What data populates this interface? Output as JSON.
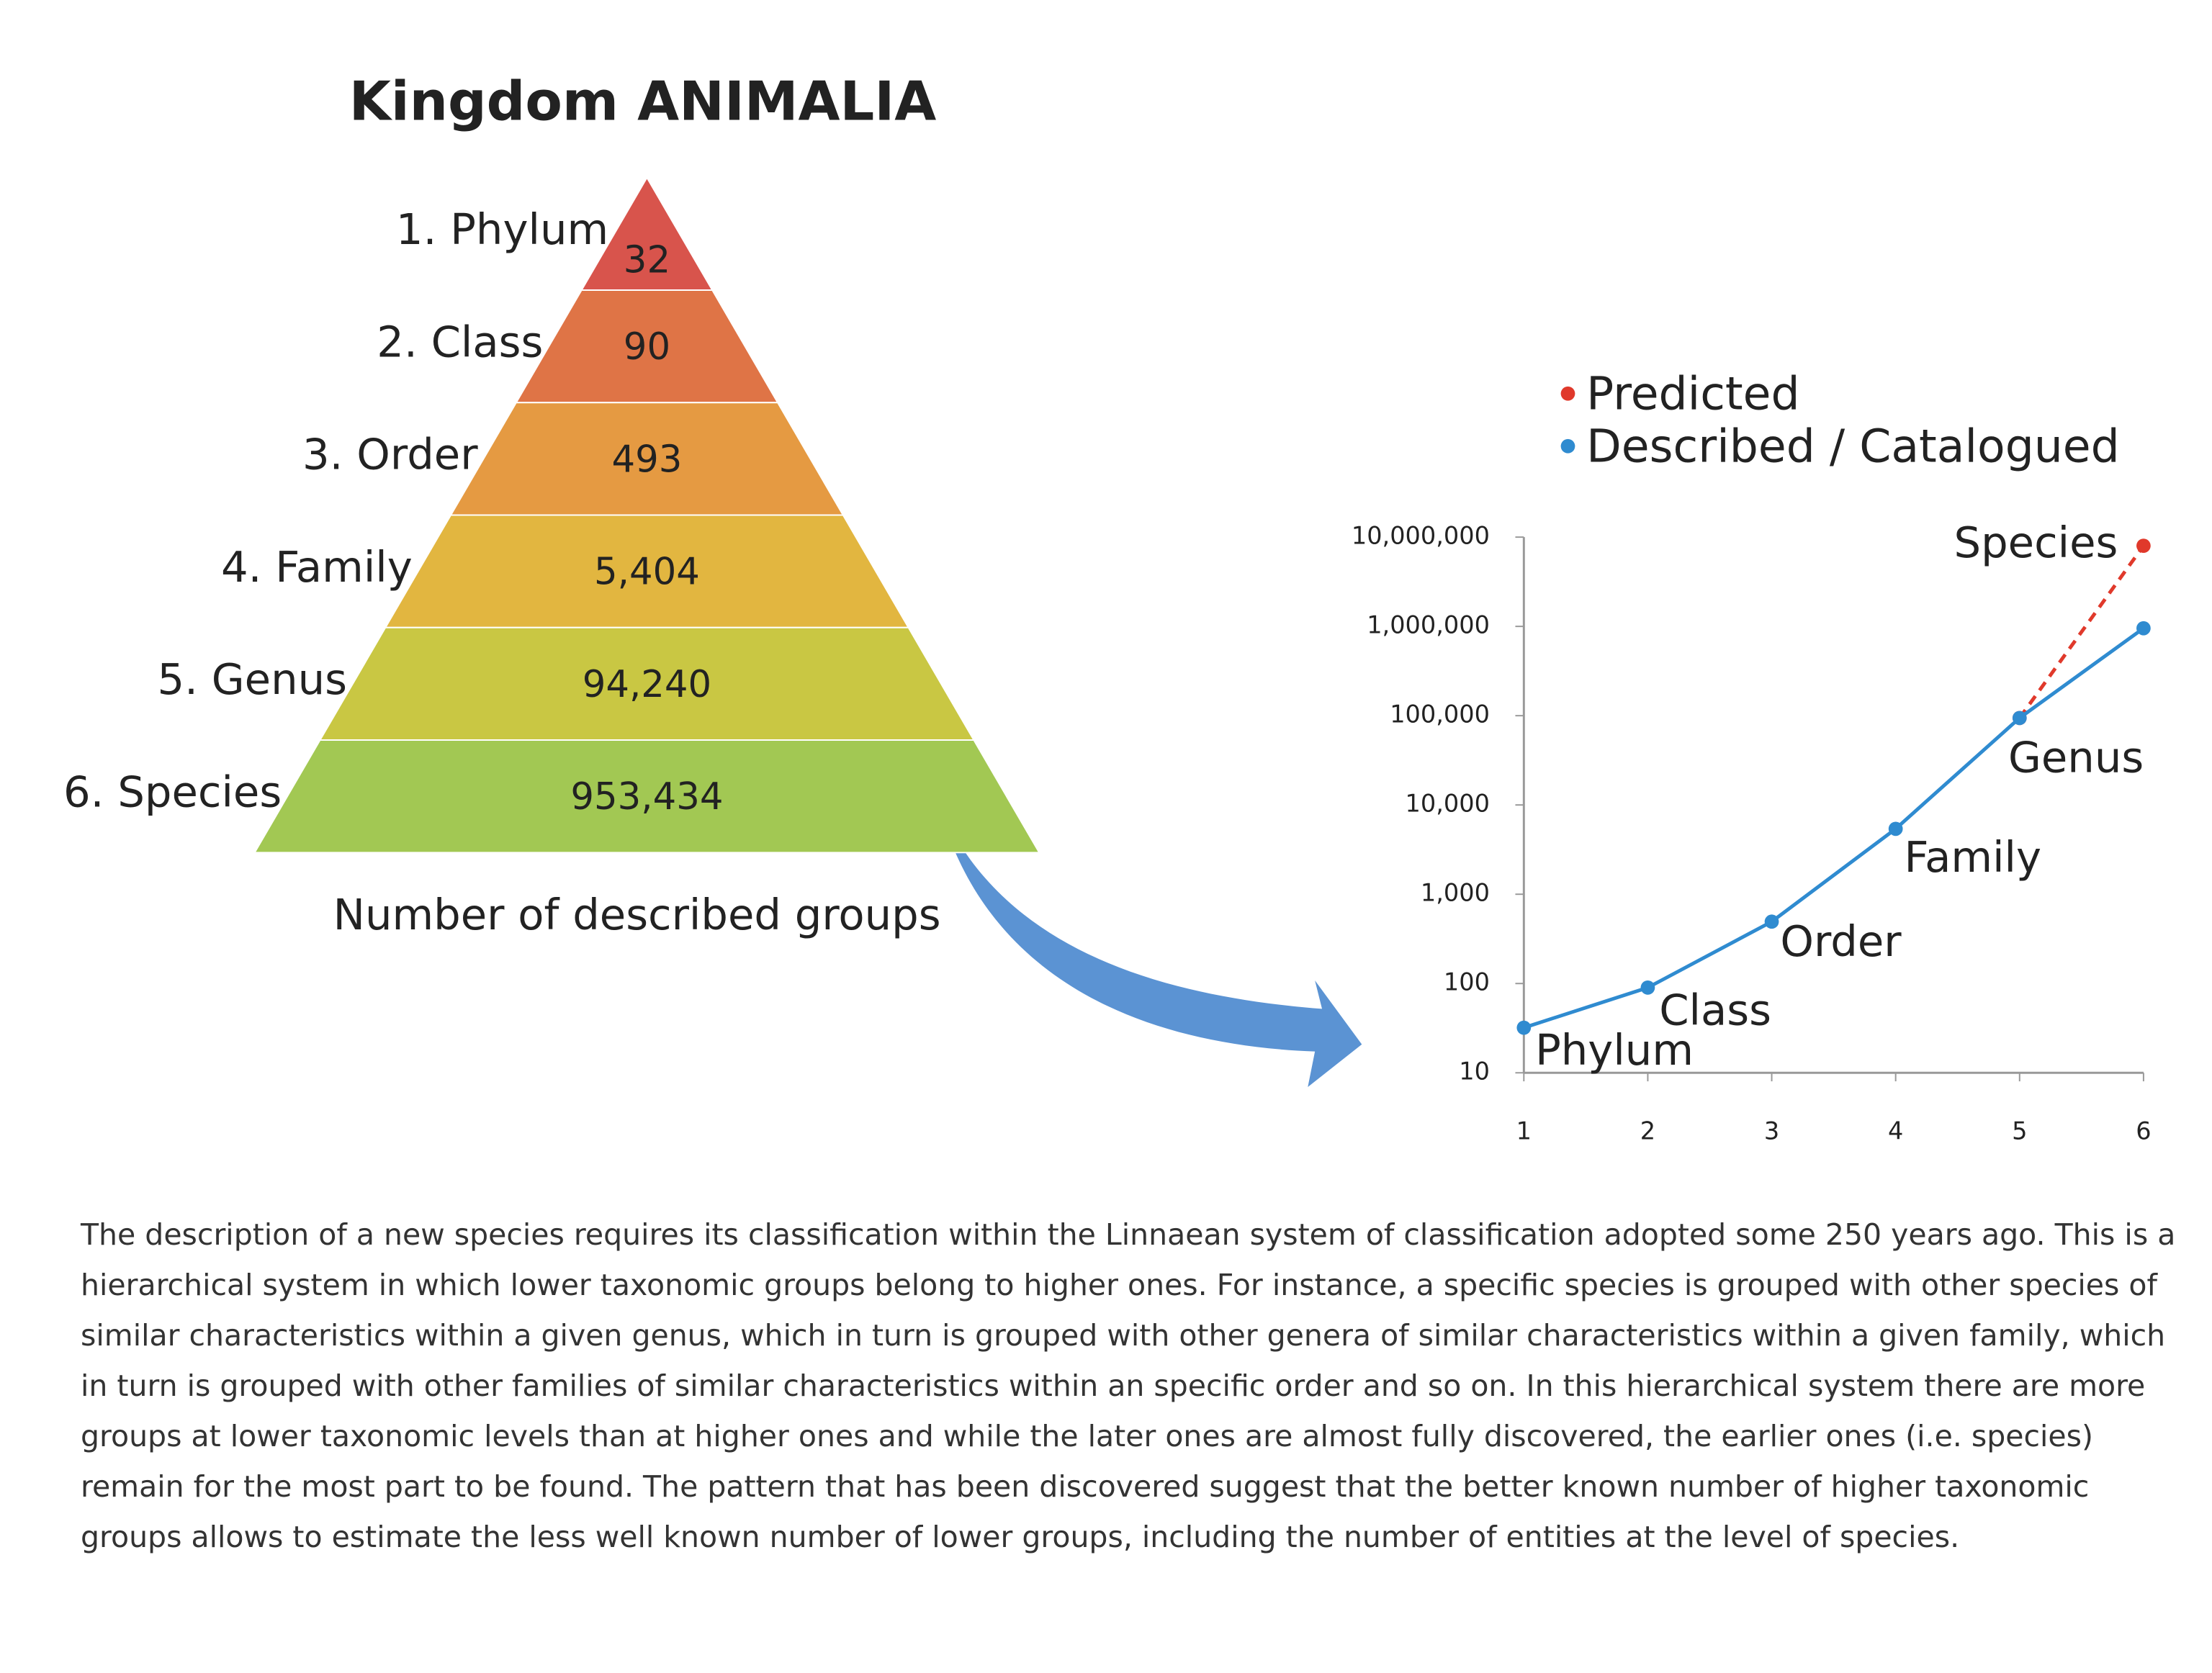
{
  "chart_data": [
    {
      "type": "pyramid",
      "title": "Kingdom ANIMALIA",
      "categories": [
        "1. Phylum",
        "2. Class",
        "3. Order",
        "4. Family",
        "5. Genus",
        "6. Species"
      ],
      "values": [
        32,
        90,
        493,
        5404,
        94240,
        953434
      ],
      "value_labels": [
        "32",
        "90",
        "493",
        "5,404",
        "94,240",
        "953,434"
      ],
      "colors": [
        "#d8544c",
        "#df7446",
        "#e59a42",
        "#e2b640",
        "#c9c743",
        "#a2c853"
      ],
      "xlabel": "Number of described groups"
    },
    {
      "type": "line",
      "yscale": "log",
      "legend": "top",
      "x": [
        1,
        2,
        3,
        4,
        5,
        6
      ],
      "point_labels": [
        "Phylum",
        "Class",
        "Order",
        "Family",
        "Genus",
        "Species"
      ],
      "xlim": [
        1,
        6
      ],
      "xticks": [
        1,
        2,
        3,
        4,
        5,
        6
      ],
      "ylim": [
        10,
        10000000
      ],
      "yticks": [
        10,
        100,
        {
          "value": 1000,
          "label": "1,000"
        },
        {
          "value": 10000,
          "label": "10,000"
        },
        {
          "value": 100000,
          "label": "100,000"
        },
        {
          "value": 1000000,
          "label": "1,000,000"
        },
        {
          "value": 10000000,
          "label": "10,000,000"
        }
      ],
      "series": [
        {
          "name": "Predicted",
          "color": "#e0392b",
          "dashed": true,
          "values": [
            null,
            null,
            null,
            null,
            94240,
            8000000
          ]
        },
        {
          "name": "Described / Catalogued",
          "color": "#2f8bd0",
          "values": [
            32,
            90,
            493,
            5404,
            94240,
            953434
          ]
        }
      ]
    }
  ],
  "text": {
    "paragraph": "The description of a new species requires its classification within the Linnaean system of classification adopted some 250 years ago. This is a hierarchical system in which lower taxonomic groups belong to higher ones.  For instance, a specific species is grouped with other species of similar characteristics within a given genus, which in turn is grouped with other genera of similar characteristics within a given family, which in turn is grouped with other families of similar characteristics within an specific order and so on. In this hierarchical system there are more groups at lower taxonomic levels than at higher ones and while the later ones are almost fully discovered, the earlier ones (i.e. species) remain for the most part to be found. The pattern that has been discovered suggest that the better known number of higher taxonomic groups allows to estimate the less well known number of lower groups, including the number of entities at the level of species."
  }
}
